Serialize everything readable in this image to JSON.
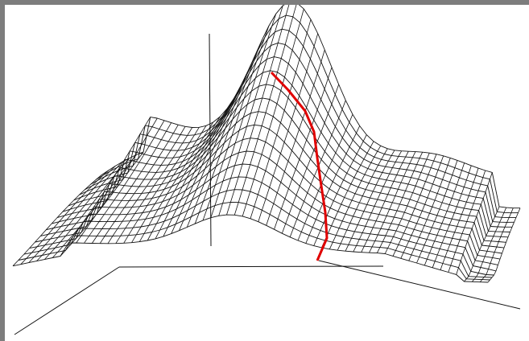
{
  "figure": {
    "description_visible_text": "",
    "colors": {
      "frame": "#7d7d7d",
      "background": "#ffffff",
      "mesh": "#111111",
      "highlight": "#e00000"
    }
  }
}
